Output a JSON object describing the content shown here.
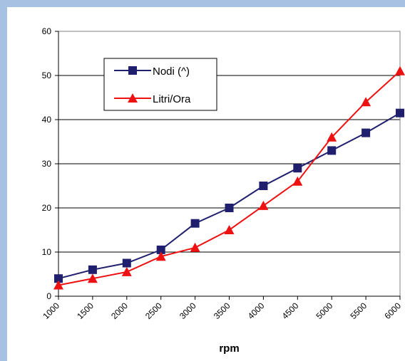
{
  "chart_data": {
    "type": "line",
    "xlabel": "rpm",
    "ylabel": "",
    "title": "",
    "x": [
      1000,
      1500,
      2000,
      2500,
      3000,
      3500,
      4000,
      4500,
      5000,
      5500,
      6000
    ],
    "x_tick_labels": [
      "1000",
      "1500",
      "2000",
      "2500",
      "3000",
      "3500",
      "4000",
      "4500",
      "5000",
      "5500",
      "6000"
    ],
    "ylim": [
      0,
      60
    ],
    "y_ticks": [
      0,
      10,
      20,
      30,
      40,
      50,
      60
    ],
    "grid": "horizontal",
    "legend_position": "top-left",
    "series": [
      {
        "name": "Nodi (^)",
        "color": "#1f1f6e",
        "marker": "square",
        "values": [
          4,
          6,
          7.5,
          10.5,
          16.5,
          20,
          25,
          29,
          33,
          37,
          41.5
        ]
      },
      {
        "name": "Litri/Ora",
        "color": "#ee1111",
        "marker": "triangle",
        "values": [
          2.5,
          4,
          5.5,
          9,
          11,
          15,
          20.5,
          26,
          36,
          44,
          51
        ]
      }
    ]
  }
}
